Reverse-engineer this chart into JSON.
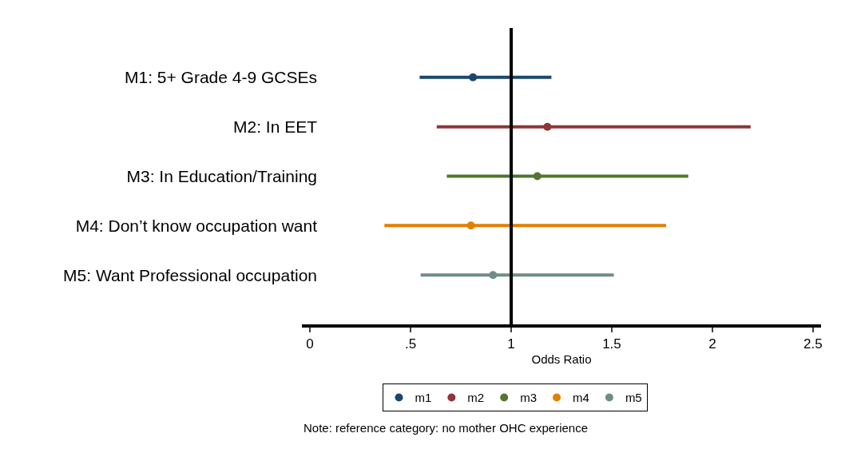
{
  "chart_data": {
    "type": "scatter",
    "orientation": "horizontal",
    "xlabel": "Odds Ratio",
    "categories": [
      "M1: 5+ Grade 4-9 GCSEs",
      "M2: In EET",
      "M3: In Education/Training",
      "M4: Don’t know occupation want",
      "M5: Want Professional occupation"
    ],
    "series": [
      {
        "name": "m1",
        "color": "#1a476f",
        "values": [
          0.81,
          null,
          null,
          null,
          null
        ],
        "errors": [
          [
            0.545,
            1.2
          ],
          null,
          null,
          null,
          null
        ]
      },
      {
        "name": "m2",
        "color": "#90353b",
        "values": [
          null,
          1.18,
          null,
          null,
          null
        ],
        "errors": [
          null,
          [
            0.63,
            2.19
          ],
          null,
          null,
          null
        ]
      },
      {
        "name": "m3",
        "color": "#55752f",
        "values": [
          null,
          null,
          1.13,
          null,
          null
        ],
        "errors": [
          null,
          null,
          [
            0.68,
            1.88
          ],
          null,
          null
        ]
      },
      {
        "name": "m4",
        "color": "#e37e00",
        "values": [
          null,
          null,
          null,
          0.8,
          null
        ],
        "errors": [
          null,
          null,
          null,
          [
            0.37,
            1.77
          ],
          null
        ]
      },
      {
        "name": "m5",
        "color": "#6e8e84",
        "values": [
          null,
          null,
          null,
          null,
          0.91
        ],
        "errors": [
          null,
          null,
          null,
          null,
          [
            0.55,
            1.51
          ]
        ]
      }
    ],
    "xlim": [
      -0.04,
      2.54
    ],
    "xticks": [
      0,
      {
        "value": 0.5,
        "label": ".5"
      },
      1,
      1.5,
      2,
      2.5
    ],
    "ref_lines": [
      {
        "axis": "x",
        "value": 1,
        "color": "#000000"
      }
    ],
    "annotations": [
      "Note: reference category: no mother OHC experience"
    ],
    "grid": false,
    "legend": "bottom",
    "marker": "circle"
  }
}
